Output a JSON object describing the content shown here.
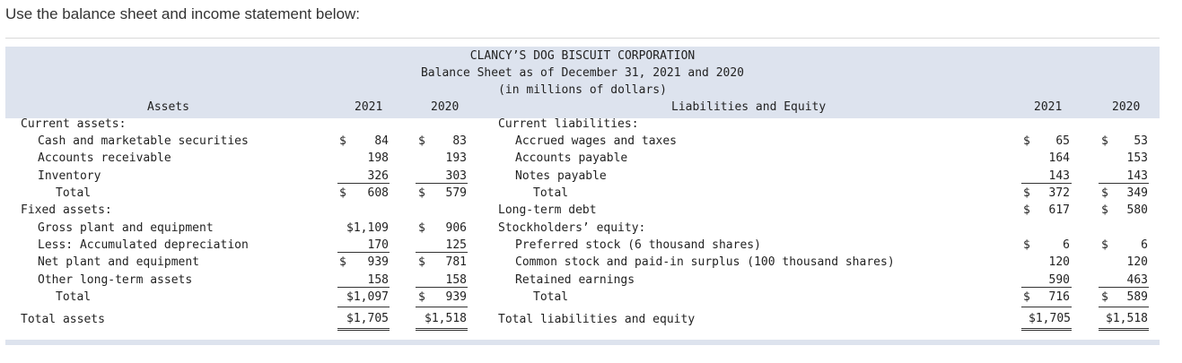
{
  "intro": "Use the balance sheet and income statement below:",
  "title": {
    "company": "CLANCY’S DOG BISCUIT CORPORATION",
    "statement": "Balance Sheet as of December 31, 2021 and 2020",
    "units": "(in millions of dollars)"
  },
  "assets": {
    "header": "Assets",
    "col_2021": "2021",
    "col_2020": "2020",
    "current_label": "Current assets:",
    "cash": {
      "label": "Cash and marketable securities",
      "y2021_sign": "$",
      "y2021": "84",
      "y2020_sign": "$",
      "y2020": "83"
    },
    "ar": {
      "label": "Accounts receivable",
      "y2021": "198",
      "y2020": "193"
    },
    "inventory": {
      "label": "Inventory",
      "y2021": "326",
      "y2020": "303"
    },
    "current_total": {
      "label": "Total",
      "y2021_sign": "$",
      "y2021": "608",
      "y2020_sign": "$",
      "y2020": "579"
    },
    "fixed_label": "Fixed assets:",
    "gross_ppe": {
      "label": "Gross plant and equipment",
      "y2021": "$1,109",
      "y2020_sign": "$",
      "y2020": "906"
    },
    "accum_dep": {
      "label": "Less: Accumulated depreciation",
      "y2021": "170",
      "y2020": "125"
    },
    "net_ppe": {
      "label": "Net plant and equipment",
      "y2021_sign": "$",
      "y2021": "939",
      "y2020_sign": "$",
      "y2020": "781"
    },
    "other_lt": {
      "label": "Other long-term assets",
      "y2021": "158",
      "y2020": "158"
    },
    "fixed_total": {
      "label": "Total",
      "y2021": "$1,097",
      "y2020_sign": "$",
      "y2020": "939"
    },
    "total_assets": {
      "label": "Total assets",
      "y2021": "$1,705",
      "y2020": "$1,518"
    }
  },
  "liabilities": {
    "header": "Liabilities and Equity",
    "col_2021": "2021",
    "col_2020": "2020",
    "current_label": "Current liabilities:",
    "accrued": {
      "label": "Accrued wages and taxes",
      "y2021_sign": "$",
      "y2021": "65",
      "y2020_sign": "$",
      "y2020": "53"
    },
    "ap": {
      "label": "Accounts payable",
      "y2021": "164",
      "y2020": "153"
    },
    "notes": {
      "label": "Notes payable",
      "y2021": "143",
      "y2020": "143"
    },
    "current_total": {
      "label": "Total",
      "y2021_sign": "$",
      "y2021": "372",
      "y2020_sign": "$",
      "y2020": "349"
    },
    "ltd": {
      "label": "Long-term debt",
      "y2021_sign": "$",
      "y2021": "617",
      "y2020_sign": "$",
      "y2020": "580"
    },
    "equity_label": "Stockholders’ equity:",
    "preferred": {
      "label": "Preferred stock (6 thousand shares)",
      "y2021_sign": "$",
      "y2021": "6",
      "y2020_sign": "$",
      "y2020": "6"
    },
    "common": {
      "label": "Common stock and paid-in surplus (100 thousand shares)",
      "y2021": "120",
      "y2020": "120"
    },
    "retained": {
      "label": "Retained earnings",
      "y2021": "590",
      "y2020": "463"
    },
    "equity_total": {
      "label": "Total",
      "y2021_sign": "$",
      "y2021": "716",
      "y2020_sign": "$",
      "y2020": "589"
    },
    "total_le": {
      "label": "Total liabilities and equity",
      "y2021": "$1,705",
      "y2020": "$1,518"
    }
  }
}
